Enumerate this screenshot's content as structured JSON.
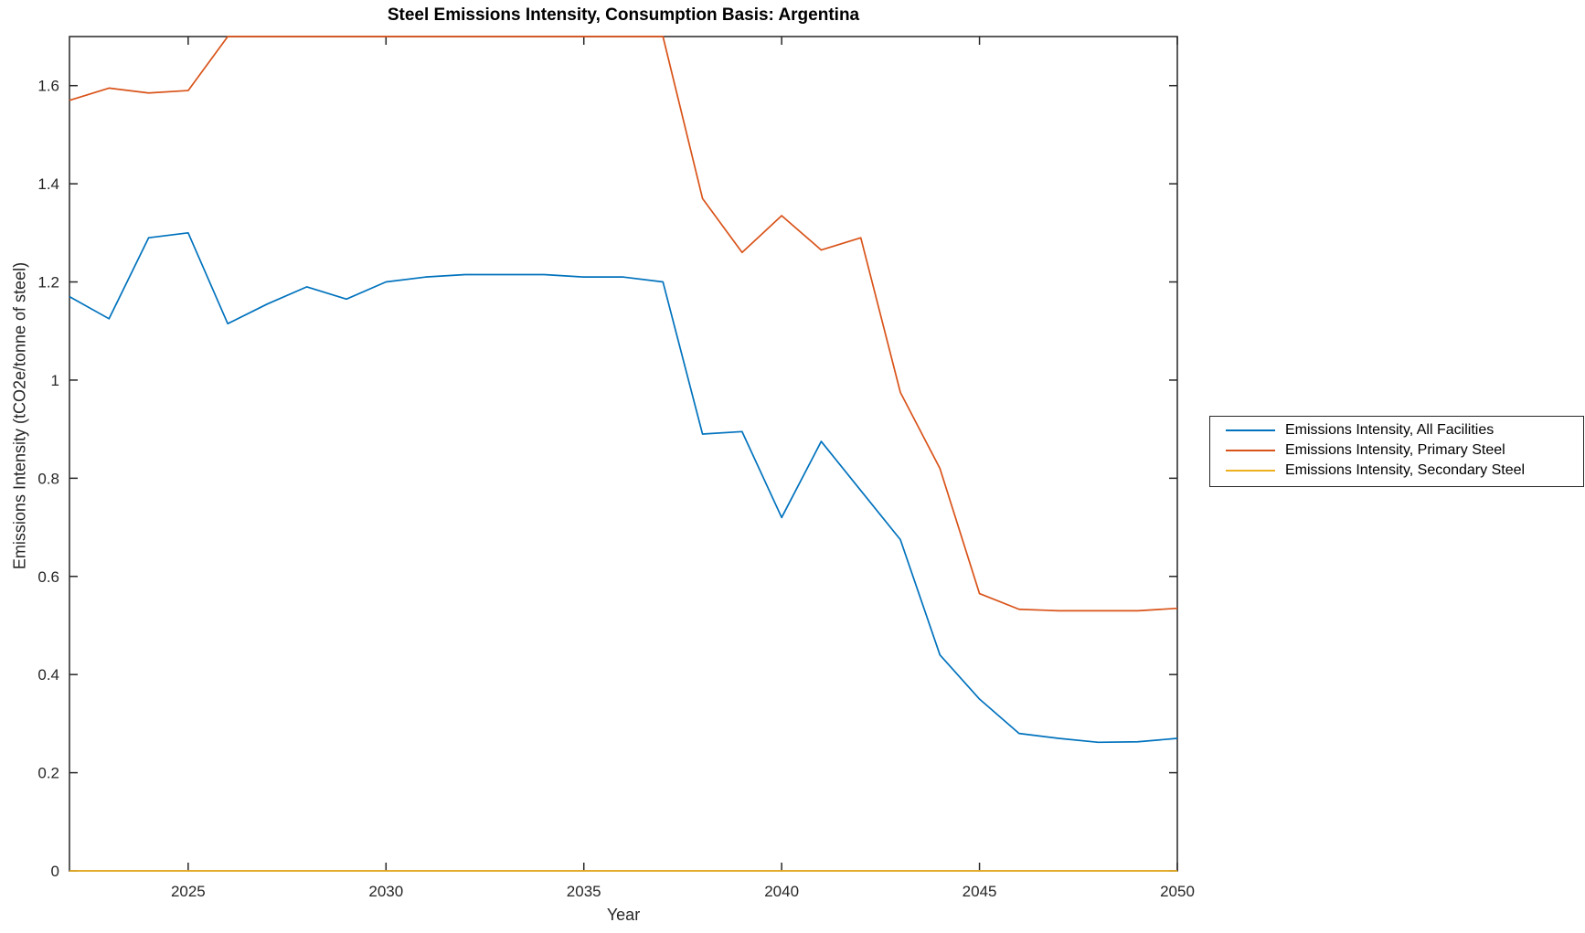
{
  "figure": {
    "title": "Steel Emissions Intensity, Consumption Basis: Argentina",
    "xlabel": "Year",
    "ylabel": "Emissions Intensity (tCO2e/tonne of steel)"
  },
  "legend": {
    "items": [
      {
        "label": "Emissions Intensity, All Facilities",
        "color": "#0072BD"
      },
      {
        "label": "Emissions Intensity, Primary Steel",
        "color": "#D95319"
      },
      {
        "label": "Emissions Intensity, Secondary Steel",
        "color": "#EDB120"
      }
    ]
  },
  "chart_data": {
    "type": "line",
    "title": "Steel Emissions Intensity, Consumption Basis: Argentina",
    "xlabel": "Year",
    "ylabel": "Emissions Intensity (tCO2e/tonne of steel)",
    "x": [
      2022,
      2023,
      2024,
      2025,
      2026,
      2027,
      2028,
      2029,
      2030,
      2031,
      2032,
      2033,
      2034,
      2035,
      2036,
      2037,
      2038,
      2039,
      2040,
      2041,
      2042,
      2043,
      2044,
      2045,
      2046,
      2047,
      2048,
      2049,
      2050
    ],
    "series": [
      {
        "name": "Emissions Intensity, All Facilities",
        "color": "#0072BD",
        "values": [
          1.17,
          1.125,
          1.29,
          1.3,
          1.115,
          1.155,
          1.19,
          1.165,
          1.2,
          1.21,
          1.215,
          1.215,
          1.215,
          1.21,
          1.21,
          1.2,
          0.89,
          0.895,
          0.72,
          0.875,
          0.775,
          0.675,
          0.44,
          0.35,
          0.28,
          0.27,
          0.262,
          0.263,
          0.27
        ]
      },
      {
        "name": "Emissions Intensity, Primary Steel",
        "color": "#D95319",
        "values": [
          1.57,
          1.595,
          1.585,
          1.59,
          1.7,
          1.7,
          1.7,
          1.7,
          1.7,
          1.7,
          1.7,
          1.7,
          1.7,
          1.7,
          1.7,
          1.7,
          1.37,
          1.26,
          1.335,
          1.265,
          1.29,
          0.975,
          0.82,
          0.565,
          0.533,
          0.53,
          0.53,
          0.53,
          0.535
        ]
      },
      {
        "name": "Emissions Intensity, Secondary Steel",
        "color": "#EDB120",
        "values": [
          0,
          0,
          0,
          0,
          0,
          0,
          0,
          0,
          0,
          0,
          0,
          0,
          0,
          0,
          0,
          0,
          0,
          0,
          0,
          0,
          0,
          0,
          0,
          0,
          0,
          0,
          0,
          0,
          0
        ]
      }
    ],
    "xlim": [
      2022,
      2050
    ],
    "ylim": [
      0,
      1.7
    ],
    "xticks": [
      2025,
      2030,
      2035,
      2040,
      2045,
      2050
    ],
    "yticks": [
      0,
      0.2,
      0.4,
      0.6,
      0.8,
      1,
      1.2,
      1.4,
      1.6
    ],
    "grid": false,
    "legend_position": "outside-right",
    "axis_color": "#262626",
    "background_color": "#ffffff"
  }
}
